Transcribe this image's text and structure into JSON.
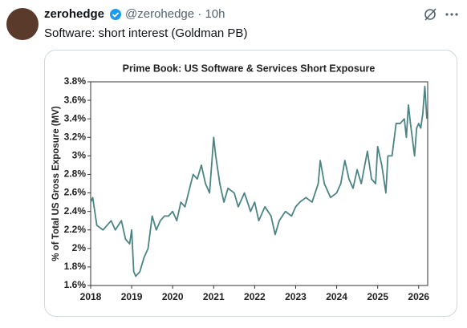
{
  "tweet": {
    "name": "zerohedge",
    "handle": "@zerohedge · 10h",
    "text": "Software: short interest (Goldman PB)"
  },
  "chart_data": {
    "type": "line",
    "title": "Prime Book: US Software & Services Short Exposure",
    "y_label": "% of Total US Gross Exposure (MV)",
    "x": [
      2018.0,
      2018.05,
      2018.15,
      2018.3,
      2018.5,
      2018.6,
      2018.75,
      2018.85,
      2018.95,
      2019.0,
      2019.05,
      2019.1,
      2019.2,
      2019.3,
      2019.4,
      2019.5,
      2019.6,
      2019.7,
      2019.8,
      2019.9,
      2020.0,
      2020.1,
      2020.2,
      2020.3,
      2020.5,
      2020.6,
      2020.7,
      2020.8,
      2020.9,
      2021.0,
      2021.05,
      2021.15,
      2021.25,
      2021.35,
      2021.5,
      2021.6,
      2021.75,
      2021.9,
      2022.0,
      2022.1,
      2022.25,
      2022.4,
      2022.5,
      2022.6,
      2022.75,
      2022.9,
      2023.0,
      2023.1,
      2023.25,
      2023.4,
      2023.55,
      2023.6,
      2023.7,
      2023.85,
      2024.0,
      2024.1,
      2024.2,
      2024.3,
      2024.4,
      2024.5,
      2024.6,
      2024.75,
      2024.85,
      2024.95,
      2025.0,
      2025.1,
      2025.2,
      2025.25,
      2025.35,
      2025.45,
      2025.55,
      2025.65,
      2025.7,
      2025.75,
      2025.8,
      2025.9,
      2025.95,
      2026.0,
      2026.05,
      2026.1,
      2026.15,
      2026.2
    ],
    "series": [
      {
        "name": "Short Exposure",
        "color": "#4b8583",
        "values": [
          2.5,
          2.55,
          2.25,
          2.2,
          2.3,
          2.2,
          2.3,
          2.1,
          2.05,
          2.2,
          1.75,
          1.7,
          1.75,
          1.9,
          2.0,
          2.35,
          2.2,
          2.3,
          2.35,
          2.35,
          2.4,
          2.3,
          2.5,
          2.45,
          2.8,
          2.75,
          2.9,
          2.7,
          2.6,
          3.2,
          3.0,
          2.7,
          2.5,
          2.65,
          2.6,
          2.45,
          2.6,
          2.4,
          2.5,
          2.3,
          2.45,
          2.35,
          2.15,
          2.3,
          2.4,
          2.35,
          2.45,
          2.5,
          2.55,
          2.5,
          2.7,
          2.95,
          2.7,
          2.55,
          2.6,
          2.7,
          2.95,
          2.75,
          2.65,
          2.85,
          2.7,
          3.05,
          2.75,
          2.7,
          3.1,
          2.9,
          2.6,
          3.0,
          3.0,
          3.35,
          3.35,
          3.4,
          3.2,
          3.55,
          3.35,
          3.0,
          3.3,
          3.35,
          3.3,
          3.45,
          3.75,
          3.4
        ]
      }
    ],
    "xlim": [
      2018,
      2026.22
    ],
    "xticks": [
      2018,
      2019,
      2020,
      2021,
      2022,
      2023,
      2024,
      2025,
      2026
    ],
    "ylim": [
      1.6,
      3.8
    ],
    "yticks": [
      {
        "value": 1.6,
        "label": "1.6%"
      },
      {
        "value": 1.8,
        "label": "1.8%"
      },
      {
        "value": 2,
        "label": "2%"
      },
      {
        "value": 2.2,
        "label": "2.2%"
      },
      {
        "value": 2.4,
        "label": "2.4%"
      },
      {
        "value": 2.6,
        "label": "2.6%"
      },
      {
        "value": 2.8,
        "label": "2.8%"
      },
      {
        "value": 3,
        "label": "3%"
      },
      {
        "value": 3.2,
        "label": "3.2%"
      },
      {
        "value": 3.4,
        "label": "3.4%"
      },
      {
        "value": 3.6,
        "label": "3.6%"
      },
      {
        "value": 3.8,
        "label": "3.8%"
      }
    ]
  }
}
